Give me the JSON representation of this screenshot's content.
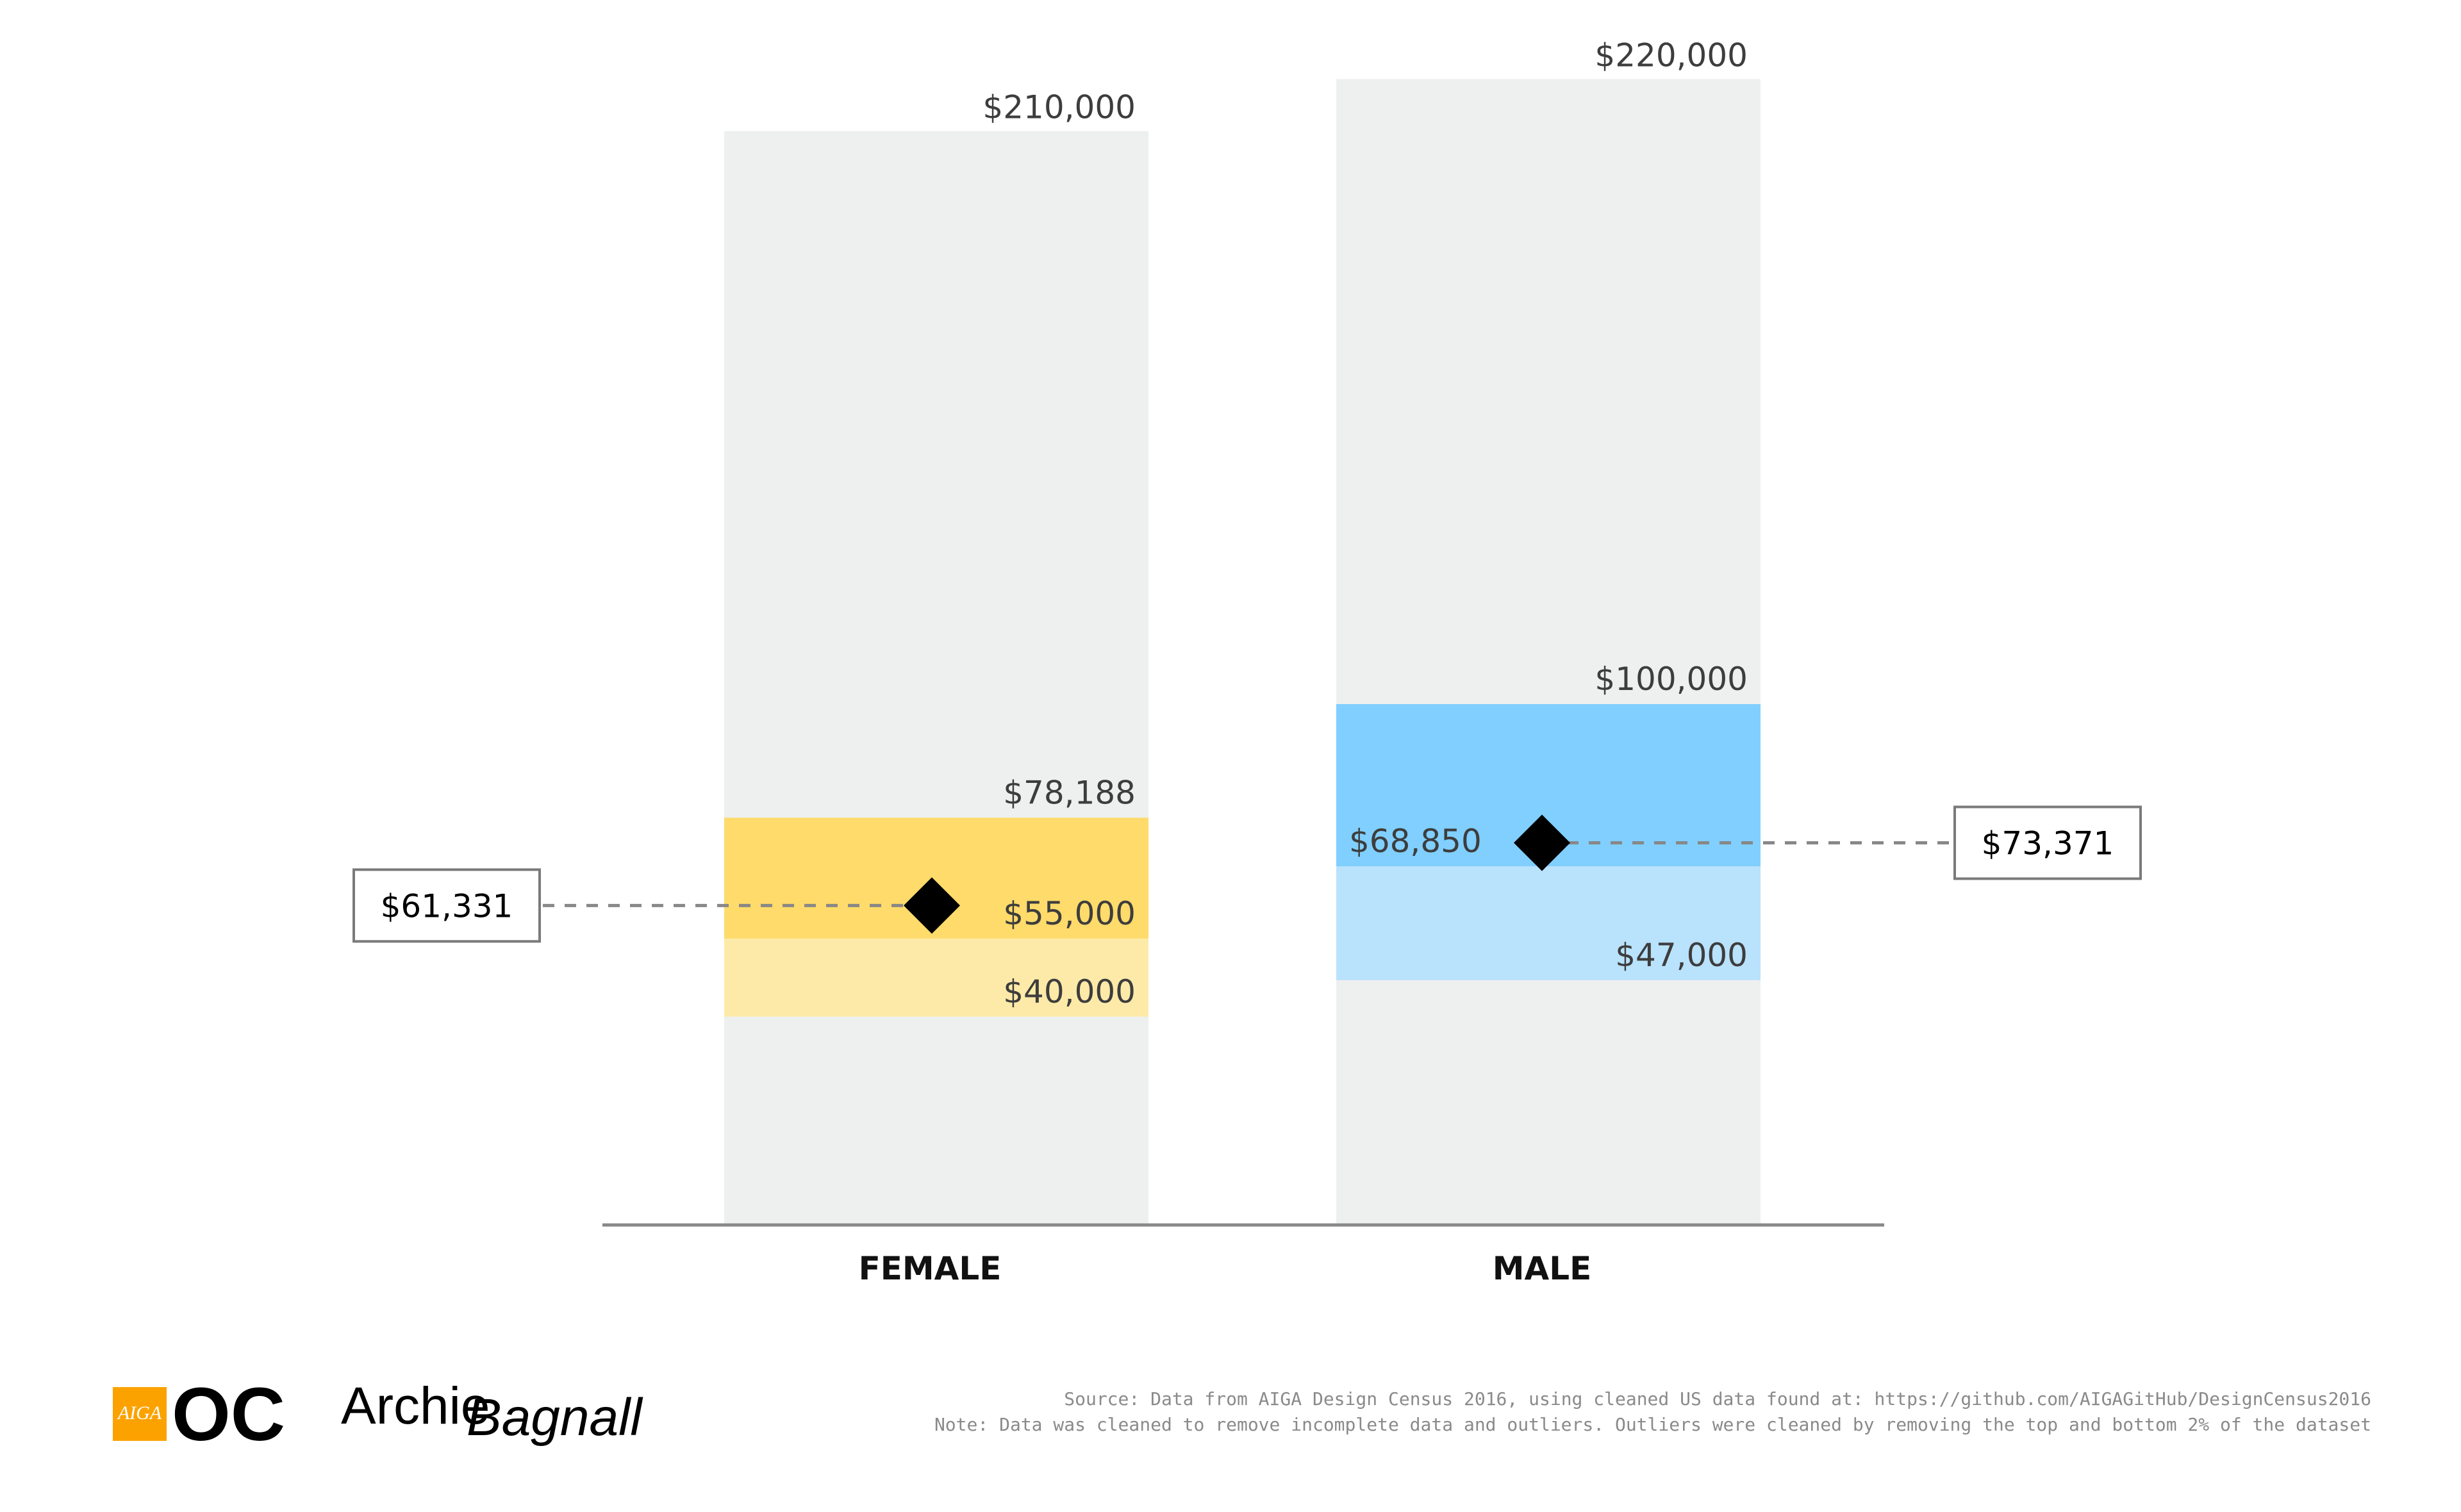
{
  "chart_data": {
    "type": "bar",
    "title": "",
    "xlabel": "",
    "ylabel": "",
    "ylim": [
      0,
      230000
    ],
    "grid": false,
    "currency_prefix": "$",
    "categories": [
      "FEMALE",
      "MALE"
    ],
    "series": [
      {
        "category": "FEMALE",
        "max": 210000,
        "max_label": "$210,000",
        "q3": 78188,
        "q3_label": "$78,188",
        "median": 55000,
        "median_label": "$55,000",
        "q1": 40000,
        "q1_label": "$40,000",
        "mean": 61331,
        "mean_label": "$61,331",
        "color_upper": "#fedb6a",
        "color_lower": "#feeaa8",
        "mean_box_side": "left"
      },
      {
        "category": "MALE",
        "max": 220000,
        "max_label": "$220,000",
        "q3": 100000,
        "q3_label": "$100,000",
        "median": 68850,
        "median_label": "$68,850",
        "q1": 47000,
        "q1_label": "$47,000",
        "mean": 73371,
        "mean_label": "$73,371",
        "color_upper": "#80cffe",
        "color_lower": "#b9e2fd",
        "mean_box_side": "right"
      }
    ],
    "colors": {
      "range_bar": "#eeefef",
      "axis": "#888888",
      "mean_marker": "#000000",
      "dash_line": "#888888"
    }
  },
  "footer": {
    "source": "Source: Data from AIGA Design Census 2016, using cleaned US data found at: https://github.com/AIGAGitHub/DesignCensus2016",
    "note": "Note: Data was cleaned to remove incomplete data and outliers. Outliers were cleaned by removing the top and bottom 2% of the dataset"
  },
  "logos": {
    "aiga_text": "AIGA",
    "oc_text": "OC",
    "aiga_color": "#fba200",
    "archie_text": "Archie",
    "bagnall_text": "Bagnall"
  }
}
